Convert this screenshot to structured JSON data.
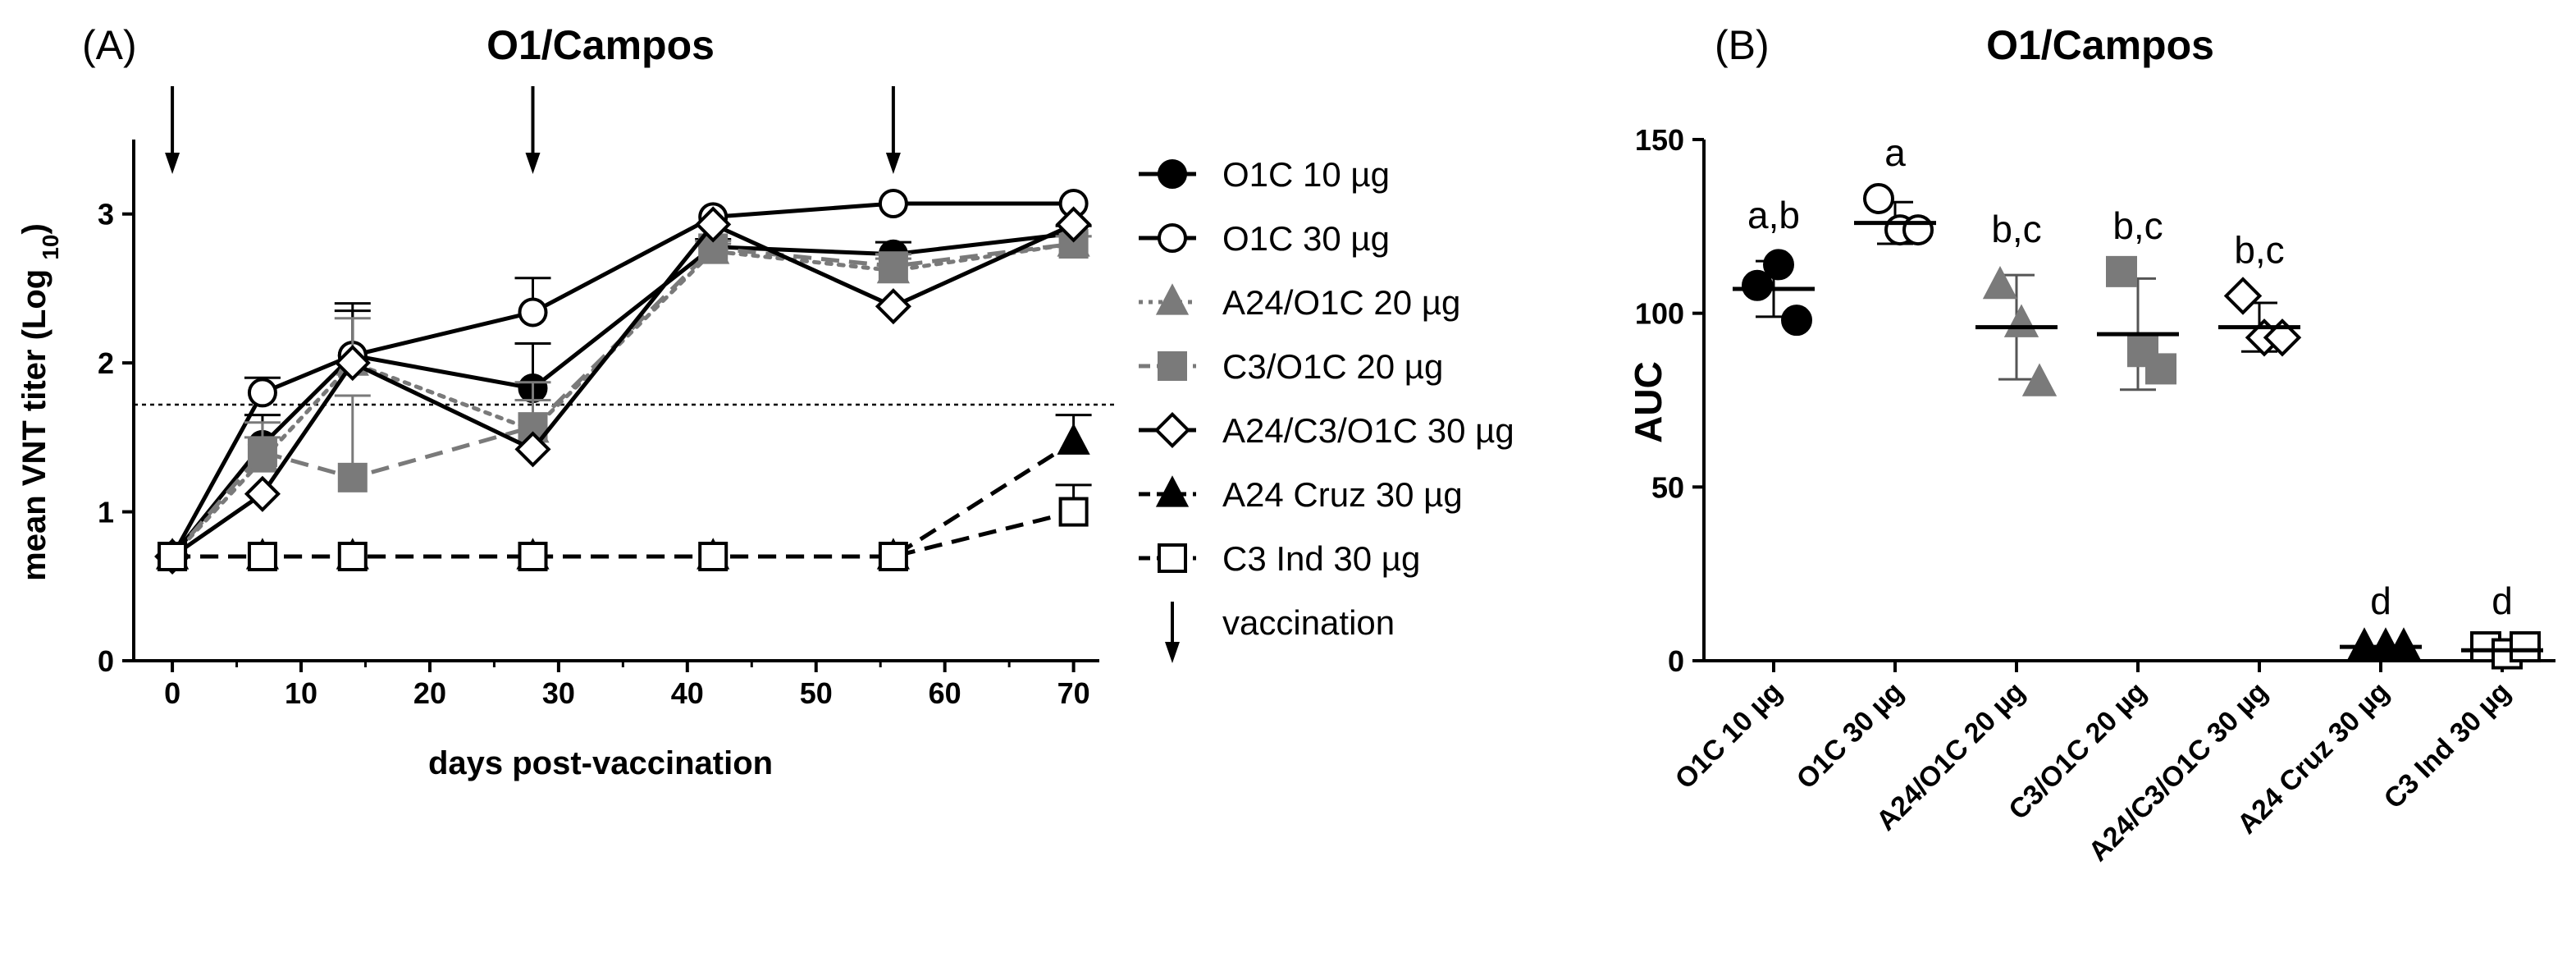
{
  "chart_data": [
    {
      "type": "line",
      "panel_label": "(A)",
      "title": "O1/Campos",
      "xlabel": "days post-vaccination",
      "ylabel": "mean VNT titer (Log 10)",
      "ylabel_main": "mean VNT titer (Log ",
      "ylabel_sub": "10",
      "ylabel_end": ")",
      "xlim": [
        -3,
        72
      ],
      "ylim": [
        0,
        3.5
      ],
      "xticks": [
        0,
        10,
        20,
        30,
        40,
        50,
        60,
        70
      ],
      "yticks": [
        0,
        1,
        2,
        3
      ],
      "threshold": 1.72,
      "vaccination_days": [
        0,
        28,
        56
      ],
      "legend_position": "right",
      "series": [
        {
          "name": "O1C 10 µg",
          "marker": "circle",
          "fill": "#000000",
          "stroke": "#000000",
          "line": "solid",
          "x": [
            0,
            7,
            14,
            28,
            42,
            56,
            70
          ],
          "y": [
            0.7,
            1.45,
            2.05,
            1.83,
            2.78,
            2.73,
            2.87
          ],
          "err": [
            0,
            0.2,
            0.3,
            0.3,
            0.05,
            0.08,
            0.05
          ]
        },
        {
          "name": "O1C 30 µg",
          "marker": "circle",
          "fill": "#ffffff",
          "stroke": "#000000",
          "line": "solid",
          "x": [
            0,
            7,
            14,
            28,
            42,
            56,
            70
          ],
          "y": [
            0.7,
            1.8,
            2.05,
            2.34,
            2.98,
            3.07,
            3.07
          ],
          "err": [
            0,
            0.1,
            0.35,
            0.23,
            0,
            0,
            0
          ]
        },
        {
          "name": "A24/O1C 20 µg",
          "marker": "triangle",
          "fill": "#7a7a7a",
          "stroke": "#7a7a7a",
          "line": "dotted",
          "x": [
            0,
            7,
            14,
            28,
            42,
            56,
            70
          ],
          "y": [
            0.7,
            1.35,
            2.0,
            1.55,
            2.75,
            2.62,
            2.8
          ],
          "err": [
            0,
            0.15,
            0.3,
            0.2,
            0.05,
            0.08,
            0.05
          ]
        },
        {
          "name": "C3/O1C 20 µg",
          "marker": "square",
          "fill": "#7a7a7a",
          "stroke": "#7a7a7a",
          "line": "dashed",
          "x": [
            0,
            7,
            14,
            28,
            42,
            56,
            70
          ],
          "y": [
            0.7,
            1.4,
            1.23,
            1.57,
            2.77,
            2.65,
            2.8
          ],
          "err": [
            0,
            0.2,
            0.55,
            0.3,
            0.05,
            0.08,
            0.05
          ]
        },
        {
          "name": "A24/C3/O1C 30 µg",
          "marker": "diamond",
          "fill": "#ffffff",
          "stroke": "#000000",
          "line": "solid",
          "x": [
            0,
            7,
            14,
            28,
            42,
            56,
            70
          ],
          "y": [
            0.7,
            1.12,
            2.0,
            1.42,
            2.93,
            2.38,
            2.93
          ],
          "err": [
            0,
            0,
            0,
            0,
            0,
            0,
            0
          ]
        },
        {
          "name": "A24 Cruz 30 µg",
          "marker": "triangle",
          "fill": "#000000",
          "stroke": "#000000",
          "line": "dashed",
          "x": [
            0,
            7,
            14,
            28,
            42,
            56,
            70
          ],
          "y": [
            0.7,
            0.7,
            0.7,
            0.7,
            0.7,
            0.7,
            1.47
          ],
          "err": [
            0,
            0,
            0,
            0,
            0,
            0,
            0.18
          ]
        },
        {
          "name": "C3 Ind 30 µg",
          "marker": "square",
          "fill": "#ffffff",
          "stroke": "#000000",
          "line": "dashed",
          "x": [
            0,
            7,
            14,
            28,
            42,
            56,
            70
          ],
          "y": [
            0.7,
            0.7,
            0.7,
            0.7,
            0.7,
            0.7,
            1.0
          ],
          "err": [
            0,
            0,
            0,
            0,
            0,
            0,
            0.18
          ]
        }
      ],
      "legend_extra": {
        "marker": "arrow",
        "name": "vaccination"
      }
    },
    {
      "type": "scatter",
      "panel_label": "(B)",
      "title": "O1/Campos",
      "ylabel": "AUC",
      "ylim": [
        0,
        150
      ],
      "yticks": [
        0,
        50,
        100,
        150
      ],
      "categories": [
        "O1C 10 µg",
        "O1C 30 µg",
        "A24/O1C 20 µg",
        "C3/O1C 20 µg",
        "A24/C3/O1C 30 µg",
        "A24 Cruz 30 µg",
        "C3 Ind 30 µg"
      ],
      "group_letters": [
        "a,b",
        "a",
        "b,c",
        "b,c",
        "b,c",
        "d",
        "d"
      ],
      "groups": [
        {
          "marker": "circle",
          "fill": "#000000",
          "stroke": "#000000",
          "points": [
            108,
            114,
            98
          ],
          "mean": 107,
          "sd": 8
        },
        {
          "marker": "circle",
          "fill": "#ffffff",
          "stroke": "#000000",
          "points": [
            133,
            124,
            124
          ],
          "mean": 126,
          "sd": 6
        },
        {
          "marker": "triangle",
          "fill": "#7a7a7a",
          "stroke": "#7a7a7a",
          "points": [
            108,
            97,
            80
          ],
          "mean": 96,
          "sd": 15
        },
        {
          "marker": "square",
          "fill": "#7a7a7a",
          "stroke": "#7a7a7a",
          "points": [
            112,
            89,
            84
          ],
          "mean": 94,
          "sd": 16
        },
        {
          "marker": "diamond",
          "fill": "#ffffff",
          "stroke": "#000000",
          "points": [
            105,
            93,
            93
          ],
          "mean": 96,
          "sd": 7
        },
        {
          "marker": "triangle",
          "fill": "#000000",
          "stroke": "#000000",
          "points": [
            4,
            4,
            4
          ],
          "mean": 4,
          "sd": 0
        },
        {
          "marker": "square",
          "fill": "#ffffff",
          "stroke": "#000000",
          "points": [
            4,
            2,
            4
          ],
          "mean": 3,
          "sd": 1
        }
      ]
    }
  ]
}
